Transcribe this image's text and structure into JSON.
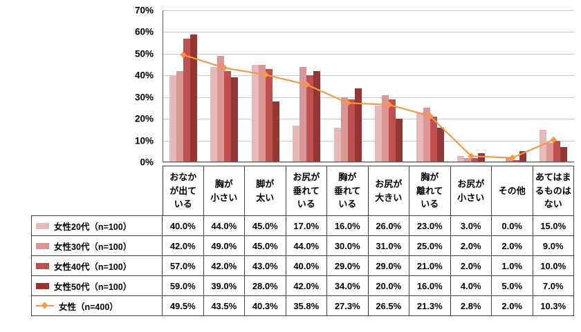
{
  "chart_data": {
    "type": "bar",
    "title": "",
    "xlabel": "",
    "ylabel": "",
    "ylim": [
      0,
      70
    ],
    "y_ticks": [
      "0%",
      "10%",
      "20%",
      "30%",
      "40%",
      "50%",
      "60%",
      "70%"
    ],
    "grid": true,
    "legend_position": "table-left",
    "categories": [
      "おなか\nが出て\nいる",
      "胸が\n小さい",
      "脚が\n太い",
      "お尻が\n垂れて\nいる",
      "胸が\n垂れて\nいる",
      "お尻が\n大きい",
      "胸が\n離れて\nいる",
      "お尻が\n小さい",
      "その他",
      "あてはま\nるものは\nない"
    ],
    "bar_series": [
      {
        "name": "女性20代（n=100）",
        "color": "#E6B9B8",
        "values": [
          40.0,
          44.0,
          45.0,
          17.0,
          16.0,
          26.0,
          23.0,
          3.0,
          0.0,
          15.0
        ]
      },
      {
        "name": "女性30代（n=100）",
        "color": "#D99694",
        "values": [
          42.0,
          49.0,
          45.0,
          44.0,
          30.0,
          31.0,
          25.0,
          2.0,
          2.0,
          9.0
        ]
      },
      {
        "name": "女性40代（n=100）",
        "color": "#C0504D",
        "values": [
          57.0,
          42.0,
          43.0,
          40.0,
          29.0,
          29.0,
          21.0,
          2.0,
          1.0,
          10.0
        ]
      },
      {
        "name": "女性50代（n=100）",
        "color": "#943634",
        "values": [
          59.0,
          39.0,
          28.0,
          42.0,
          34.0,
          20.0,
          16.0,
          4.0,
          5.0,
          7.0
        ]
      }
    ],
    "line_series": {
      "name": "女性（n=400）",
      "color": "#F79646",
      "values": [
        49.5,
        43.5,
        40.3,
        35.8,
        27.3,
        26.5,
        21.3,
        2.8,
        2.0,
        10.3
      ]
    },
    "value_suffix": "%"
  }
}
